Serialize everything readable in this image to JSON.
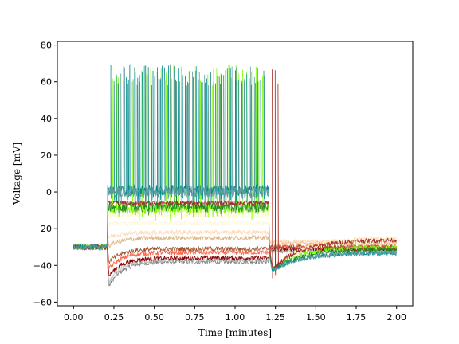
{
  "chart_data": {
    "type": "line",
    "title": "",
    "xlabel": "Time [minutes]",
    "ylabel": "Voltage [mV]",
    "xlim": [
      -0.1,
      2.1
    ],
    "ylim": [
      -62,
      82
    ],
    "xticks": [
      0.0,
      0.25,
      0.5,
      0.75,
      1.0,
      1.25,
      1.5,
      1.75,
      2.0
    ],
    "xtick_labels": [
      "0.00",
      "0.25",
      "0.50",
      "0.75",
      "1.00",
      "1.25",
      "1.50",
      "1.75",
      "2.00"
    ],
    "yticks": [
      -60,
      -40,
      -20,
      0,
      20,
      40,
      60,
      80
    ],
    "ytick_labels": [
      "−60",
      "−40",
      "−20",
      "0",
      "20",
      "40",
      "60",
      "80"
    ],
    "grid": false,
    "legend": "none",
    "stimulus": {
      "onset": 0.21,
      "offset": 1.21,
      "end": 2.0,
      "baseline": -30
    },
    "series": [
      {
        "color": "#808080",
        "plateau": -38,
        "sag_min": -53,
        "after": -32,
        "spikes": 0
      },
      {
        "color": "#c0c0c0",
        "plateau": -37,
        "sag_min": -50,
        "after": -32,
        "spikes": 0
      },
      {
        "color": "#8b0000",
        "plateau": -36,
        "sag_min": -47,
        "after": -31,
        "spikes": 0
      },
      {
        "color": "#ff6347",
        "plateau": -33,
        "sag_min": -43,
        "after": -30,
        "spikes": 0
      },
      {
        "color": "#a0522d",
        "plateau": -31,
        "sag_min": -39,
        "after": -30,
        "spikes": 0
      },
      {
        "color": "#deb887",
        "plateau": -25,
        "sag_min": -30,
        "after": -28,
        "spikes": 0
      },
      {
        "color": "#ffdab9",
        "plateau": -22,
        "sag_min": -25,
        "after": -27,
        "spikes": 0
      },
      {
        "color": "#fff8dc",
        "plateau": -17,
        "sag_min": -17,
        "after": -26,
        "spikes": 0
      },
      {
        "color": "#fffacd",
        "plateau": -13,
        "sag_min": -13,
        "after": -26,
        "spikes": 0
      },
      {
        "color": "#ffe4b5",
        "plateau": -10,
        "sag_min": -10,
        "after": -25,
        "spikes": 0,
        "offset_spikes": 3
      },
      {
        "color": "#7cfc00",
        "plateau": -9,
        "sag_min": -9,
        "after": -30,
        "spikes": 40
      },
      {
        "color": "#228b22",
        "plateau": -8,
        "sag_min": -8,
        "after": -31,
        "spikes": 10
      },
      {
        "color": "#a52a2a",
        "plateau": -6,
        "sag_min": -6,
        "after": -26,
        "spikes": 0,
        "offset_spikes": 3
      },
      {
        "color": "#008b8b",
        "plateau": 1,
        "sag_min": 1,
        "after": -33,
        "spikes": 55
      },
      {
        "color": "#5f9ea0",
        "plateau": 0,
        "sag_min": 0,
        "after": -33,
        "spikes": 50
      }
    ]
  }
}
